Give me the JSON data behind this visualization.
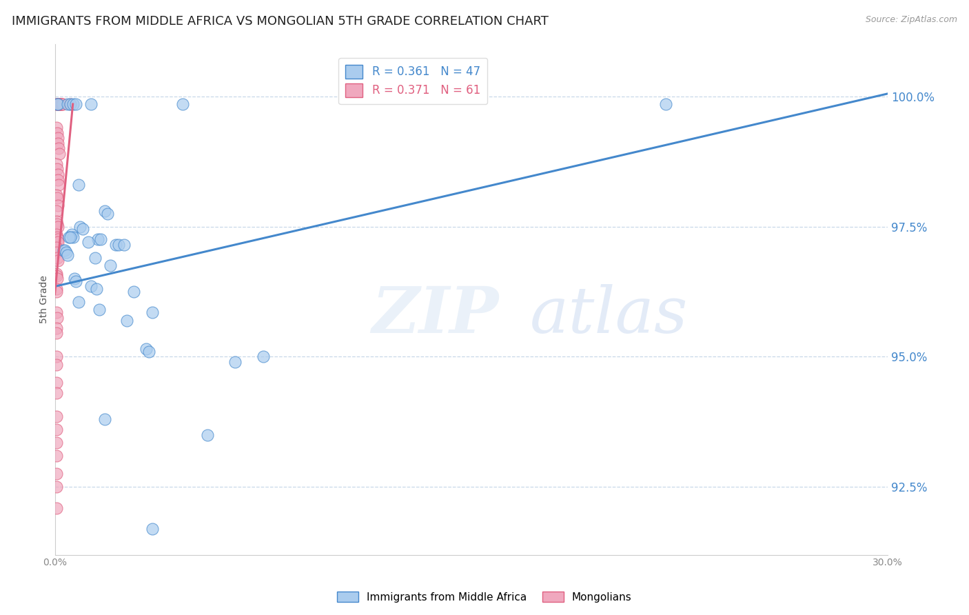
{
  "title": "IMMIGRANTS FROM MIDDLE AFRICA VS MONGOLIAN 5TH GRADE CORRELATION CHART",
  "source": "Source: ZipAtlas.com",
  "ylabel": "5th Grade",
  "watermark_zip": "ZIP",
  "watermark_atlas": "atlas",
  "xmin": 0.0,
  "xmax": 30.0,
  "ymin": 91.2,
  "ymax": 101.0,
  "yticks": [
    92.5,
    95.0,
    97.5,
    100.0
  ],
  "ytick_labels": [
    "92.5%",
    "95.0%",
    "97.5%",
    "100.0%"
  ],
  "blue_scatter": [
    [
      0.08,
      99.85
    ],
    [
      0.12,
      99.85
    ],
    [
      0.45,
      99.85
    ],
    [
      0.55,
      99.85
    ],
    [
      0.65,
      99.85
    ],
    [
      0.75,
      99.85
    ],
    [
      1.3,
      99.85
    ],
    [
      4.6,
      99.85
    ],
    [
      22.0,
      99.85
    ],
    [
      0.85,
      98.3
    ],
    [
      1.8,
      97.8
    ],
    [
      1.9,
      97.75
    ],
    [
      0.9,
      97.5
    ],
    [
      1.0,
      97.45
    ],
    [
      0.6,
      97.35
    ],
    [
      0.65,
      97.3
    ],
    [
      0.5,
      97.3
    ],
    [
      0.55,
      97.3
    ],
    [
      1.55,
      97.25
    ],
    [
      1.65,
      97.25
    ],
    [
      1.2,
      97.2
    ],
    [
      2.2,
      97.15
    ],
    [
      2.3,
      97.15
    ],
    [
      2.5,
      97.15
    ],
    [
      0.3,
      97.05
    ],
    [
      0.35,
      97.05
    ],
    [
      0.4,
      97.0
    ],
    [
      0.45,
      96.95
    ],
    [
      1.45,
      96.9
    ],
    [
      2.0,
      96.75
    ],
    [
      0.7,
      96.5
    ],
    [
      0.75,
      96.45
    ],
    [
      1.3,
      96.35
    ],
    [
      1.5,
      96.3
    ],
    [
      2.85,
      96.25
    ],
    [
      0.85,
      96.05
    ],
    [
      1.6,
      95.9
    ],
    [
      3.5,
      95.85
    ],
    [
      2.6,
      95.7
    ],
    [
      3.3,
      95.15
    ],
    [
      3.4,
      95.1
    ],
    [
      7.5,
      95.0
    ],
    [
      6.5,
      94.9
    ],
    [
      1.8,
      93.8
    ],
    [
      5.5,
      93.5
    ],
    [
      3.5,
      91.7
    ]
  ],
  "pink_scatter": [
    [
      0.05,
      99.85
    ],
    [
      0.07,
      99.85
    ],
    [
      0.09,
      99.85
    ],
    [
      0.11,
      99.85
    ],
    [
      0.13,
      99.85
    ],
    [
      0.15,
      99.85
    ],
    [
      0.17,
      99.85
    ],
    [
      0.19,
      99.85
    ],
    [
      0.21,
      99.85
    ],
    [
      0.23,
      99.85
    ],
    [
      0.27,
      99.85
    ],
    [
      0.29,
      99.85
    ],
    [
      0.55,
      99.85
    ],
    [
      0.06,
      99.4
    ],
    [
      0.08,
      99.3
    ],
    [
      0.1,
      99.2
    ],
    [
      0.12,
      99.1
    ],
    [
      0.14,
      99.0
    ],
    [
      0.16,
      98.9
    ],
    [
      0.06,
      98.7
    ],
    [
      0.08,
      98.6
    ],
    [
      0.1,
      98.5
    ],
    [
      0.12,
      98.4
    ],
    [
      0.14,
      98.3
    ],
    [
      0.06,
      98.1
    ],
    [
      0.08,
      98.05
    ],
    [
      0.1,
      97.9
    ],
    [
      0.05,
      97.8
    ],
    [
      0.07,
      97.6
    ],
    [
      0.09,
      97.55
    ],
    [
      0.11,
      97.5
    ],
    [
      0.06,
      97.35
    ],
    [
      0.08,
      97.3
    ],
    [
      0.1,
      97.25
    ],
    [
      0.12,
      97.2
    ],
    [
      0.05,
      97.1
    ],
    [
      0.07,
      97.0
    ],
    [
      0.09,
      96.9
    ],
    [
      0.11,
      96.85
    ],
    [
      0.05,
      96.6
    ],
    [
      0.07,
      96.55
    ],
    [
      0.09,
      96.5
    ],
    [
      0.05,
      96.3
    ],
    [
      0.07,
      96.25
    ],
    [
      0.06,
      95.85
    ],
    [
      0.08,
      95.75
    ],
    [
      0.05,
      95.55
    ],
    [
      0.07,
      95.45
    ],
    [
      0.05,
      95.0
    ],
    [
      0.07,
      94.85
    ],
    [
      0.05,
      94.5
    ],
    [
      0.06,
      94.3
    ],
    [
      0.05,
      93.85
    ],
    [
      0.07,
      93.6
    ],
    [
      0.05,
      93.35
    ],
    [
      0.06,
      93.1
    ],
    [
      0.05,
      92.75
    ],
    [
      0.06,
      92.5
    ],
    [
      0.05,
      92.1
    ]
  ],
  "blue_line_x": [
    0.0,
    30.0
  ],
  "blue_line_y": [
    96.35,
    100.05
  ],
  "pink_line_x": [
    0.0,
    0.65
  ],
  "pink_line_y": [
    96.2,
    99.85
  ],
  "blue_color": "#4488cc",
  "pink_color": "#e06080",
  "blue_scatter_color": "#aaccee",
  "pink_scatter_color": "#f0a8be",
  "grid_color": "#c8d8e8",
  "background_color": "#ffffff",
  "title_fontsize": 13,
  "legend_r_blue": "0.361",
  "legend_n_blue": "47",
  "legend_r_pink": "0.371",
  "legend_n_pink": "61",
  "legend_label_blue": "Immigrants from Middle Africa",
  "legend_label_pink": "Mongolians"
}
